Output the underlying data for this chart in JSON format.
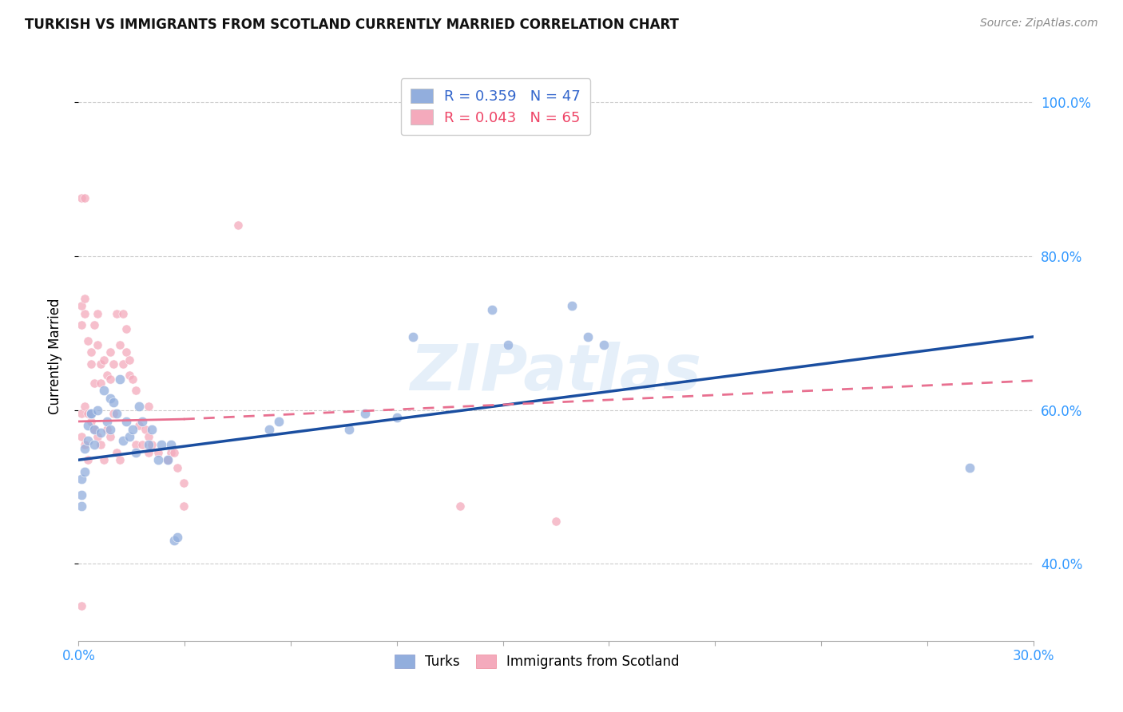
{
  "title": "TURKISH VS IMMIGRANTS FROM SCOTLAND CURRENTLY MARRIED CORRELATION CHART",
  "source": "Source: ZipAtlas.com",
  "ylabel": "Currently Married",
  "legend_blue": {
    "R": 0.359,
    "N": 47,
    "label": "Turks"
  },
  "legend_pink": {
    "R": 0.043,
    "N": 65,
    "label": "Immigrants from Scotland"
  },
  "blue_color": "#92AEDD",
  "pink_color": "#F4AABC",
  "blue_line_color": "#1A4EA0",
  "pink_line_color": "#E87090",
  "watermark": "ZIPatlas",
  "xlim": [
    0.0,
    0.3
  ],
  "ylim": [
    0.3,
    1.04
  ],
  "blue_line": [
    [
      0.0,
      0.535
    ],
    [
      0.3,
      0.695
    ]
  ],
  "pink_line_solid": [
    [
      0.0,
      0.585
    ],
    [
      0.033,
      0.588
    ]
  ],
  "pink_line_dashed": [
    [
      0.033,
      0.588
    ],
    [
      0.3,
      0.638
    ]
  ],
  "blue_dots": [
    [
      0.001,
      0.51
    ],
    [
      0.001,
      0.49
    ],
    [
      0.002,
      0.52
    ],
    [
      0.002,
      0.55
    ],
    [
      0.003,
      0.58
    ],
    [
      0.003,
      0.56
    ],
    [
      0.004,
      0.595
    ],
    [
      0.004,
      0.595
    ],
    [
      0.005,
      0.575
    ],
    [
      0.005,
      0.555
    ],
    [
      0.006,
      0.6
    ],
    [
      0.007,
      0.57
    ],
    [
      0.008,
      0.625
    ],
    [
      0.009,
      0.585
    ],
    [
      0.01,
      0.615
    ],
    [
      0.01,
      0.575
    ],
    [
      0.011,
      0.61
    ],
    [
      0.012,
      0.595
    ],
    [
      0.013,
      0.64
    ],
    [
      0.014,
      0.56
    ],
    [
      0.015,
      0.585
    ],
    [
      0.016,
      0.565
    ],
    [
      0.017,
      0.575
    ],
    [
      0.018,
      0.545
    ],
    [
      0.019,
      0.605
    ],
    [
      0.02,
      0.585
    ],
    [
      0.022,
      0.555
    ],
    [
      0.023,
      0.575
    ],
    [
      0.025,
      0.535
    ],
    [
      0.026,
      0.555
    ],
    [
      0.028,
      0.535
    ],
    [
      0.029,
      0.555
    ],
    [
      0.03,
      0.43
    ],
    [
      0.031,
      0.435
    ],
    [
      0.06,
      0.575
    ],
    [
      0.063,
      0.585
    ],
    [
      0.085,
      0.575
    ],
    [
      0.09,
      0.595
    ],
    [
      0.1,
      0.59
    ],
    [
      0.105,
      0.695
    ],
    [
      0.13,
      0.73
    ],
    [
      0.135,
      0.685
    ],
    [
      0.155,
      0.735
    ],
    [
      0.16,
      0.695
    ],
    [
      0.165,
      0.685
    ],
    [
      0.28,
      0.525
    ],
    [
      0.001,
      0.475
    ]
  ],
  "pink_dots": [
    [
      0.001,
      0.875
    ],
    [
      0.002,
      0.875
    ],
    [
      0.001,
      0.71
    ],
    [
      0.002,
      0.725
    ],
    [
      0.001,
      0.735
    ],
    [
      0.002,
      0.745
    ],
    [
      0.003,
      0.69
    ],
    [
      0.004,
      0.66
    ],
    [
      0.004,
      0.675
    ],
    [
      0.005,
      0.635
    ],
    [
      0.005,
      0.71
    ],
    [
      0.006,
      0.685
    ],
    [
      0.006,
      0.725
    ],
    [
      0.007,
      0.66
    ],
    [
      0.007,
      0.635
    ],
    [
      0.008,
      0.665
    ],
    [
      0.009,
      0.645
    ],
    [
      0.01,
      0.675
    ],
    [
      0.01,
      0.64
    ],
    [
      0.011,
      0.66
    ],
    [
      0.012,
      0.725
    ],
    [
      0.013,
      0.685
    ],
    [
      0.014,
      0.66
    ],
    [
      0.015,
      0.675
    ],
    [
      0.016,
      0.645
    ],
    [
      0.017,
      0.64
    ],
    [
      0.018,
      0.625
    ],
    [
      0.018,
      0.555
    ],
    [
      0.019,
      0.58
    ],
    [
      0.02,
      0.555
    ],
    [
      0.021,
      0.575
    ],
    [
      0.022,
      0.565
    ],
    [
      0.022,
      0.545
    ],
    [
      0.023,
      0.555
    ],
    [
      0.025,
      0.545
    ],
    [
      0.028,
      0.535
    ],
    [
      0.029,
      0.545
    ],
    [
      0.03,
      0.545
    ],
    [
      0.031,
      0.525
    ],
    [
      0.033,
      0.505
    ],
    [
      0.033,
      0.475
    ],
    [
      0.05,
      0.84
    ],
    [
      0.001,
      0.595
    ],
    [
      0.002,
      0.605
    ],
    [
      0.003,
      0.595
    ],
    [
      0.004,
      0.585
    ],
    [
      0.005,
      0.575
    ],
    [
      0.001,
      0.565
    ],
    [
      0.002,
      0.555
    ],
    [
      0.003,
      0.535
    ],
    [
      0.006,
      0.565
    ],
    [
      0.007,
      0.555
    ],
    [
      0.008,
      0.535
    ],
    [
      0.009,
      0.575
    ],
    [
      0.01,
      0.565
    ],
    [
      0.011,
      0.595
    ],
    [
      0.012,
      0.545
    ],
    [
      0.013,
      0.535
    ],
    [
      0.12,
      0.475
    ],
    [
      0.15,
      0.455
    ],
    [
      0.001,
      0.345
    ],
    [
      0.022,
      0.605
    ],
    [
      0.014,
      0.725
    ],
    [
      0.015,
      0.705
    ],
    [
      0.016,
      0.665
    ]
  ],
  "blue_dot_size": 80,
  "pink_dot_size": 65
}
